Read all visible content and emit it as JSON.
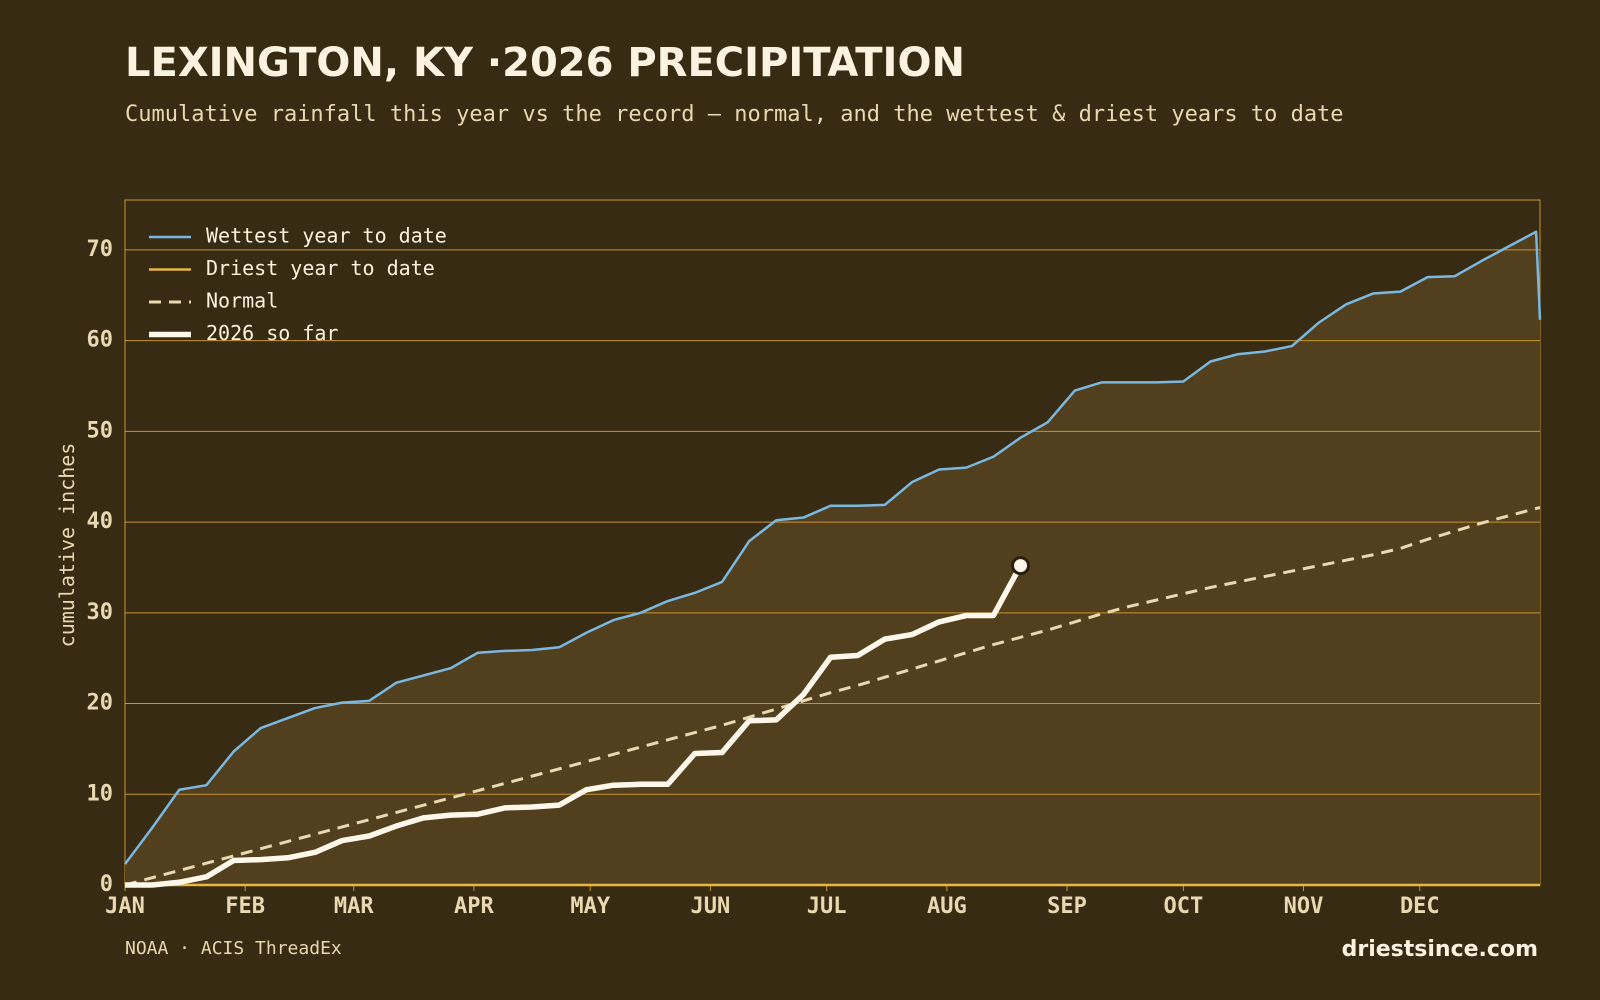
{
  "chart_data": {
    "type": "line",
    "title": "LEXINGTON, KY ·2026 PRECIPITATION",
    "subtitle": "Cumulative rainfall this year vs the record — normal, and the wettest & driest years to date",
    "ylabel": "cumulative inches",
    "source": "NOAA · ACIS ThreadEx",
    "credit": "driestsince.com",
    "legend": "upper left",
    "grid": true,
    "xlim": [
      0,
      365
    ],
    "xticks": [
      {
        "value": 0,
        "label": "JAN"
      },
      {
        "value": 31,
        "label": "FEB"
      },
      {
        "value": 59,
        "label": "MAR"
      },
      {
        "value": 90,
        "label": "APR"
      },
      {
        "value": 120,
        "label": "MAY"
      },
      {
        "value": 151,
        "label": "JUN"
      },
      {
        "value": 181,
        "label": "JUL"
      },
      {
        "value": 212,
        "label": "AUG"
      },
      {
        "value": 243,
        "label": "SEP"
      },
      {
        "value": 273,
        "label": "OCT"
      },
      {
        "value": 304,
        "label": "NOV"
      },
      {
        "value": 334,
        "label": "DEC"
      }
    ],
    "ylim": [
      0,
      75.5
    ],
    "yticks": [
      0,
      10,
      20,
      30,
      40,
      50,
      60,
      70
    ],
    "x": [
      0,
      7,
      14,
      21,
      28,
      35,
      42,
      49,
      56,
      63,
      70,
      77,
      84,
      91,
      98,
      105,
      112,
      119,
      126,
      133,
      140,
      147,
      154,
      161,
      168,
      175,
      182,
      189,
      196,
      203,
      210,
      217,
      224,
      231,
      238,
      245,
      252,
      259,
      266,
      273,
      280,
      287,
      294,
      301,
      308,
      315,
      322,
      329,
      336,
      343,
      350,
      357,
      364,
      365
    ],
    "series": [
      {
        "name": "Wettest year to date",
        "color": "#7ab8e0",
        "linestyle": "solid",
        "fill": "#523f1e",
        "values": [
          2.3,
          6.3,
          10.5,
          11,
          14.7,
          17.3,
          18.4,
          19.5,
          20.1,
          20.3,
          22.3,
          23.1,
          23.9,
          25.6,
          25.8,
          25.9,
          26.2,
          27.8,
          29.2,
          30.0,
          31.3,
          32.2,
          33.4,
          37.9,
          40.2,
          40.5,
          41.8,
          41.8,
          41.9,
          44.4,
          45.8,
          46.0,
          47.2,
          49.3,
          51.0,
          54.5,
          55.4,
          55.4,
          55.4,
          55.5,
          57.7,
          58.5,
          58.8,
          59.4,
          62.0,
          64.0,
          65.2,
          65.4,
          67.0,
          67.1,
          68.8,
          70.4,
          72.0,
          62.3
        ]
      },
      {
        "name": "Driest year to date",
        "color": "#e8b840",
        "linestyle": "solid",
        "values": [
          0,
          0,
          0,
          0,
          0,
          0,
          0,
          0,
          0,
          0,
          0,
          0,
          0,
          0,
          0,
          0,
          0,
          0,
          0,
          0,
          0,
          0,
          0,
          0,
          0,
          0,
          0,
          0,
          0,
          0,
          0,
          0,
          0,
          0,
          0,
          0,
          0,
          0,
          0,
          0,
          0,
          0,
          0,
          0,
          0,
          0,
          0,
          0,
          0,
          0,
          0,
          0,
          0,
          0
        ]
      },
      {
        "name": "Normal",
        "color": "#e8d9b0",
        "linestyle": "dashed",
        "values": [
          0,
          0.8,
          1.6,
          2.4,
          3.2,
          4.0,
          4.8,
          5.6,
          6.4,
          7.2,
          8.0,
          8.8,
          9.6,
          10.4,
          11.2,
          12.0,
          12.8,
          13.6,
          14.4,
          15.2,
          16.0,
          16.8,
          17.6,
          18.5,
          19.4,
          20.3,
          21.2,
          22.0,
          22.9,
          23.8,
          24.7,
          25.6,
          26.5,
          27.3,
          28.1,
          29.0,
          29.9,
          30.7,
          31.4,
          32.1,
          32.8,
          33.4,
          34.0,
          34.6,
          35.2,
          35.8,
          36.4,
          37.1,
          38.1,
          39.0,
          39.9,
          40.7,
          41.5,
          41.6
        ]
      },
      {
        "name": "2026 so far",
        "color": "#fff8ea",
        "linestyle": "thick",
        "end_marker": true,
        "values": [
          0,
          0,
          0.3,
          0.9,
          2.7,
          2.8,
          3.0,
          3.6,
          4.9,
          5.4,
          6.5,
          7.4,
          7.7,
          7.8,
          8.5,
          8.6,
          8.8,
          10.5,
          11.0,
          11.1,
          11.1,
          14.5,
          14.6,
          18.1,
          18.2,
          21.0,
          25.1,
          25.3,
          27.1,
          27.6,
          29.0,
          29.7,
          29.7,
          35.2,
          null,
          null,
          null,
          null,
          null,
          null,
          null,
          null,
          null,
          null,
          null,
          null,
          null,
          null,
          null,
          null,
          null,
          null,
          null,
          null
        ]
      }
    ]
  }
}
